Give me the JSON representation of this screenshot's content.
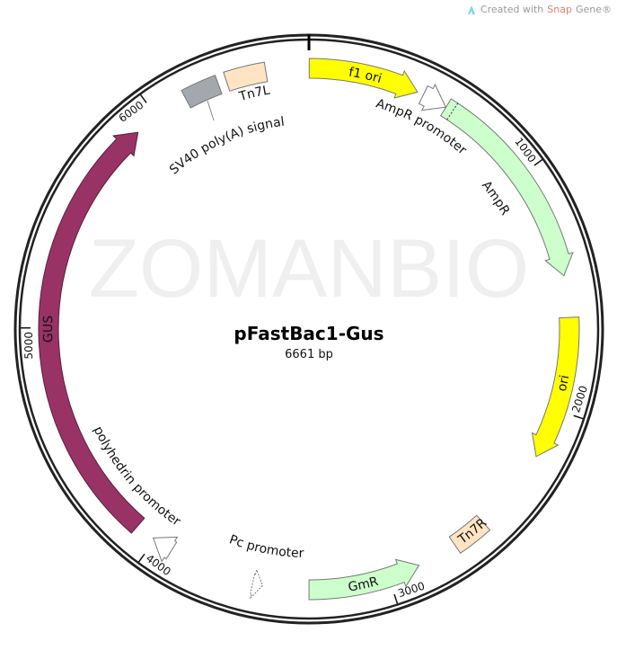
{
  "credit": {
    "prefix": "Created with ",
    "brand": "SnapGene",
    "suffix": "Gene®",
    "brand_part": "Snap",
    "logo_icon": "snapgene-logo-icon"
  },
  "watermark": "ZOMANBIO",
  "plasmid": {
    "name": "pFastBac1-Gus",
    "length_label": "6661 bp",
    "length": 6661
  },
  "ticks": [
    {
      "bp": 1000,
      "label": "1000"
    },
    {
      "bp": 2000,
      "label": "2000"
    },
    {
      "bp": 3000,
      "label": "3000"
    },
    {
      "bp": 4000,
      "label": "4000"
    },
    {
      "bp": 5000,
      "label": "5000"
    },
    {
      "bp": 6000,
      "label": "6000"
    }
  ],
  "features": [
    {
      "name": "f1 ori",
      "start": 1,
      "end": 456,
      "strand": "+",
      "shape": "arrow",
      "color": "#ffff00",
      "label_inside": true
    },
    {
      "name": "AmpR promoter",
      "start": 482,
      "end": 586,
      "strand": "+",
      "shape": "arrow",
      "color": "#ffffff",
      "label_inside": false
    },
    {
      "name": "AmpR",
      "start": 587,
      "end": 1447,
      "strand": "+",
      "shape": "arrow",
      "color": "#ccffcc",
      "label_inside": false
    },
    {
      "name": "ori",
      "start": 1618,
      "end": 2207,
      "strand": "+",
      "shape": "arrow",
      "color": "#ffff00",
      "label_inside": true
    },
    {
      "name": "Tn7R",
      "start": 2553,
      "end": 2700,
      "strand": "",
      "shape": "box",
      "color": "#ffe4c4",
      "label_inside": true
    },
    {
      "name": "GmR",
      "start": 2868,
      "end": 3330,
      "strand": "-",
      "shape": "arrow",
      "color": "#ccffcc",
      "label_inside": true
    },
    {
      "name": "Pc promoter",
      "start": 3520,
      "end": 3562,
      "strand": "-",
      "shape": "arrow",
      "color": "#ffffff",
      "label_inside": false
    },
    {
      "name": "polyhedrin promoter",
      "start": 3920,
      "end": 4010,
      "strand": "+",
      "shape": "arrow",
      "color": "#ffffff",
      "label_inside": false
    },
    {
      "name": "GUS",
      "start": 4090,
      "end": 5902,
      "strand": "+",
      "shape": "arrow",
      "color": "#993366",
      "label_inside": true
    },
    {
      "name": "SV40 poly(A) signal",
      "start": 6140,
      "end": 6285,
      "strand": "",
      "shape": "box",
      "color": "#a3a7ae",
      "label_inside": false
    },
    {
      "name": "Tn7L",
      "start": 6320,
      "end": 6485,
      "strand": "",
      "shape": "box",
      "color": "#ffe4c4",
      "label_inside": false
    }
  ]
}
